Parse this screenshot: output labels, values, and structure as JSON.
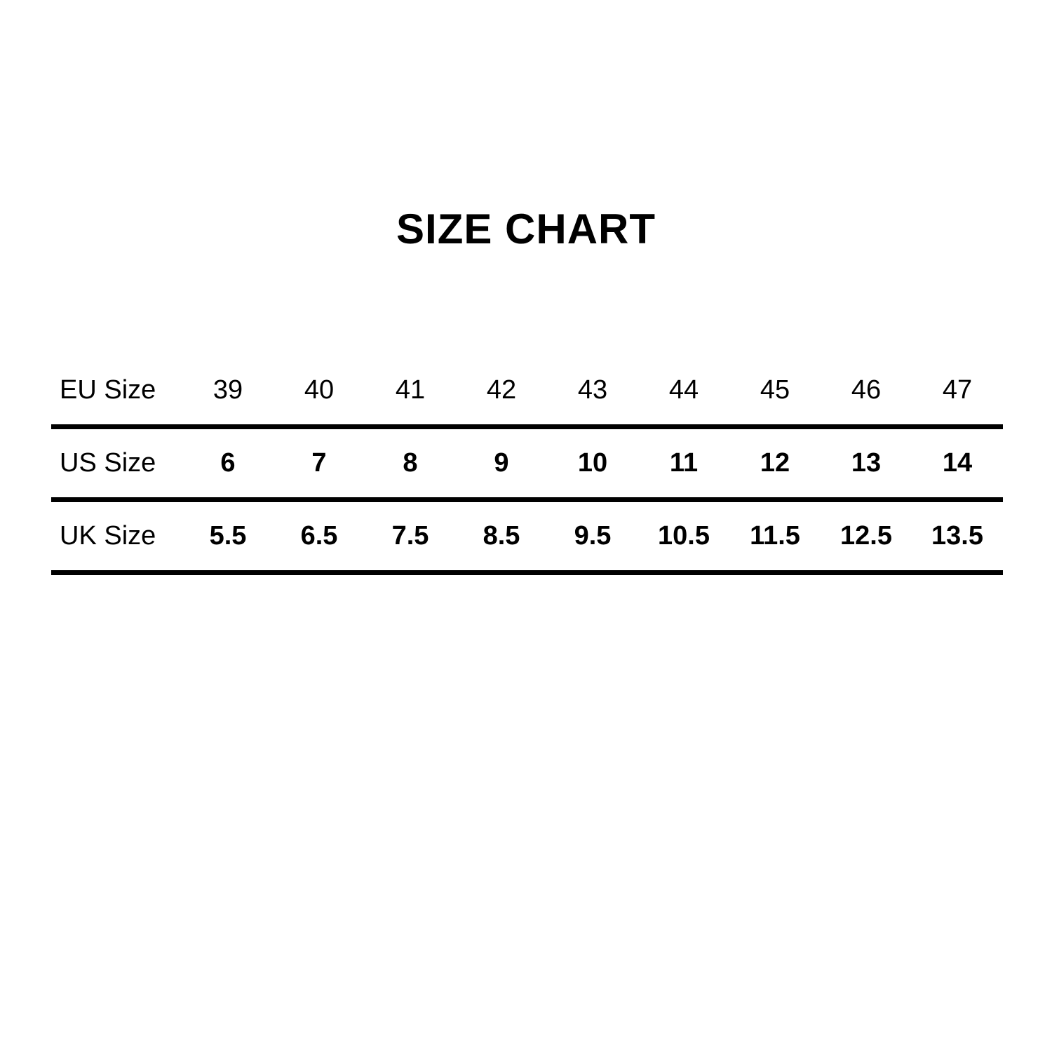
{
  "title": "SIZE CHART",
  "colors": {
    "background": "#ffffff",
    "text": "#000000",
    "rule": "#000000"
  },
  "chart_data": {
    "type": "table",
    "title": "SIZE CHART",
    "row_headers": [
      "EU Size",
      "US Size",
      "UK Size"
    ],
    "rows": [
      {
        "label": "EU Size",
        "bold_values": false,
        "values": [
          "39",
          "40",
          "41",
          "42",
          "43",
          "44",
          "45",
          "46",
          "47"
        ]
      },
      {
        "label": "US Size",
        "bold_values": true,
        "values": [
          "6",
          "7",
          "8",
          "9",
          "10",
          "11",
          "12",
          "13",
          "14"
        ]
      },
      {
        "label": "UK Size",
        "bold_values": true,
        "values": [
          "5.5",
          "6.5",
          "7.5",
          "8.5",
          "9.5",
          "10.5",
          "11.5",
          "12.5",
          "13.5"
        ]
      }
    ],
    "layout": {
      "grid": "horizontal-rules-only",
      "legend": "none"
    }
  }
}
